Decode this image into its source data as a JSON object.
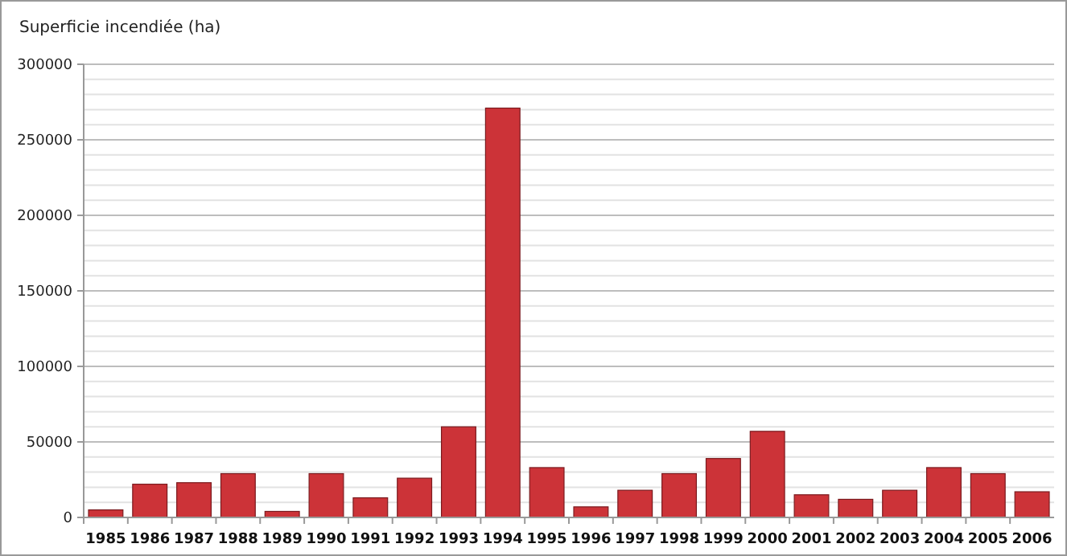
{
  "chart_data": {
    "type": "bar",
    "ylabel": "Superficie incendiée (ha)",
    "categories": [
      "1985",
      "1986",
      "1987",
      "1988",
      "1989",
      "1990",
      "1991",
      "1992",
      "1993",
      "1994",
      "1995",
      "1996",
      "1997",
      "1998",
      "1999",
      "2000",
      "2001",
      "2002",
      "2003",
      "2004",
      "2005",
      "2006"
    ],
    "values": [
      5000,
      22000,
      23000,
      29000,
      4000,
      29000,
      13000,
      26000,
      60000,
      271000,
      33000,
      7000,
      18000,
      29000,
      39000,
      57000,
      15000,
      12000,
      18000,
      33000,
      29000,
      17000
    ],
    "color": "#cc3338",
    "ylim": [
      0,
      300000
    ],
    "yticks": [
      0,
      {
        "value": 10000,
        "label": null
      },
      {
        "value": 20000,
        "label": null
      },
      {
        "value": 30000,
        "label": null
      },
      {
        "value": 40000,
        "label": null
      },
      50000,
      {
        "value": 60000,
        "label": null
      },
      {
        "value": 70000,
        "label": null
      },
      {
        "value": 80000,
        "label": null
      },
      {
        "value": 90000,
        "label": null
      },
      100000,
      {
        "value": 110000,
        "label": null
      },
      {
        "value": 120000,
        "label": null
      },
      {
        "value": 130000,
        "label": null
      },
      {
        "value": 140000,
        "label": null
      },
      150000,
      {
        "value": 160000,
        "label": null
      },
      {
        "value": 170000,
        "label": null
      },
      {
        "value": 180000,
        "label": null
      },
      {
        "value": 190000,
        "label": null
      },
      200000,
      {
        "value": 210000,
        "label": null
      },
      {
        "value": 220000,
        "label": null
      },
      {
        "value": 230000,
        "label": null
      },
      {
        "value": 240000,
        "label": null
      },
      250000,
      {
        "value": 260000,
        "label": null
      },
      {
        "value": 270000,
        "label": null
      },
      {
        "value": 280000,
        "label": null
      },
      {
        "value": 290000,
        "label": null
      },
      300000
    ],
    "grid": "y"
  }
}
